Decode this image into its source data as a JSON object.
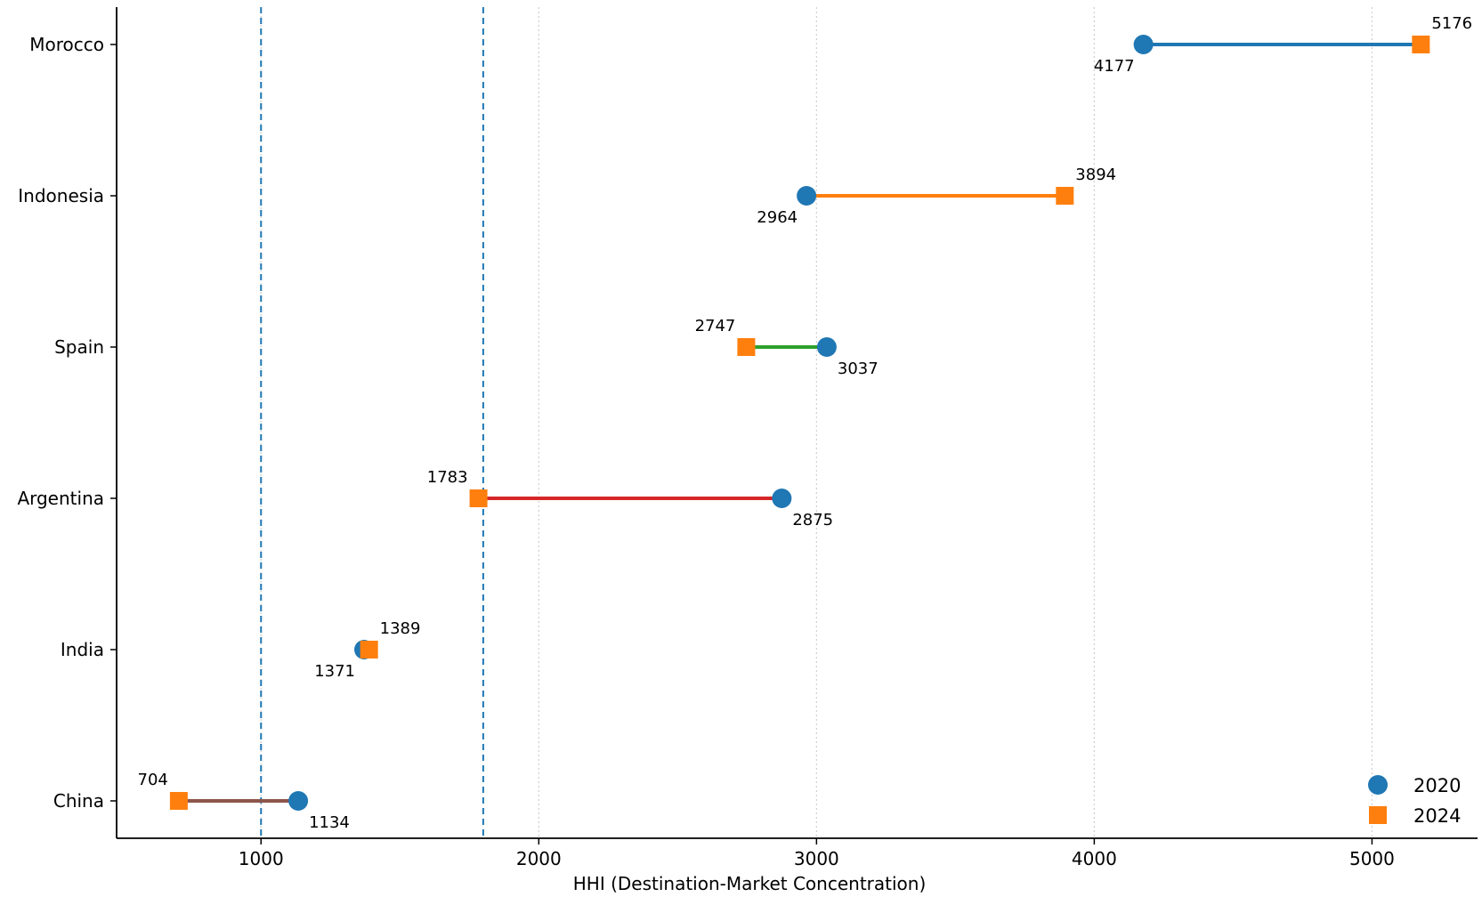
{
  "chart_data": {
    "type": "dumbbell",
    "title": "",
    "xlabel": "HHI (Destination-Market Concentration)",
    "ylabel": "",
    "xlim": [
      480,
      5380
    ],
    "xticks": [
      1000,
      2000,
      3000,
      4000,
      5000
    ],
    "reference_lines": [
      1000,
      1800
    ],
    "grid": "vertical dotted",
    "legend_position": "bottom-right",
    "series": [
      {
        "name": "2020",
        "marker": "circle",
        "color": "#1f77b4"
      },
      {
        "name": "2024",
        "marker": "square",
        "color": "#ff7f0e"
      }
    ],
    "categories": [
      "Morocco",
      "Indonesia",
      "Spain",
      "Argentina",
      "India",
      "China"
    ],
    "rows": [
      {
        "country": "Morocco",
        "v2020": 4177,
        "v2024": 5176,
        "line_color": "#1f77b4"
      },
      {
        "country": "Indonesia",
        "v2020": 2964,
        "v2024": 3894,
        "line_color": "#ff7f0e"
      },
      {
        "country": "Spain",
        "v2020": 3037,
        "v2024": 2747,
        "line_color": "#2ca02c"
      },
      {
        "country": "Argentina",
        "v2020": 2875,
        "v2024": 1783,
        "line_color": "#d62728"
      },
      {
        "country": "India",
        "v2020": 1371,
        "v2024": 1389,
        "line_color": "#9467bd"
      },
      {
        "country": "China",
        "v2020": 1134,
        "v2024": 704,
        "line_color": "#8c564b"
      }
    ]
  }
}
